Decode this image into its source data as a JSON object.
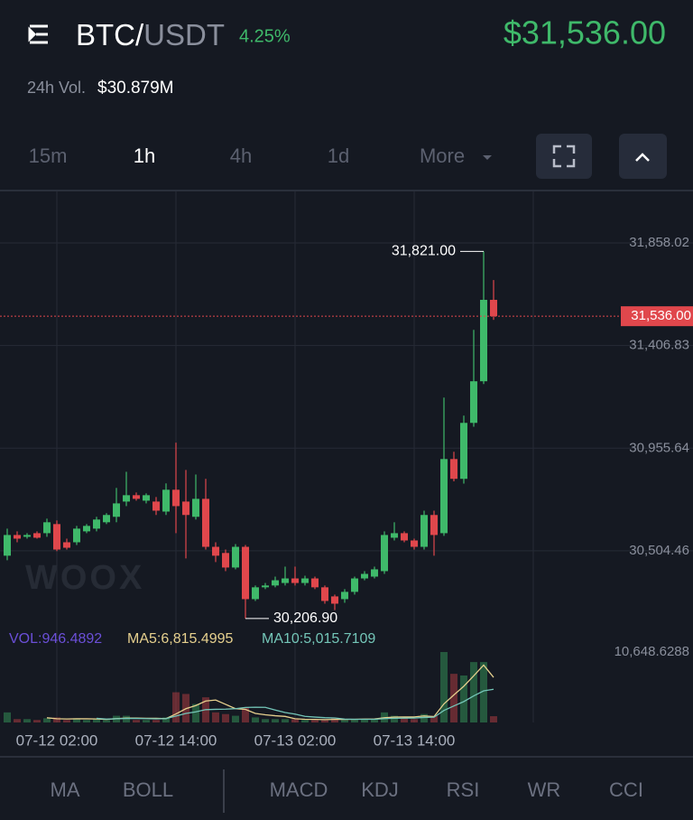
{
  "header": {
    "base": "BTC/",
    "quote": "USDT",
    "change": "4.25%",
    "price": "$31,536.00",
    "volume_label": "24h Vol.",
    "volume": "$30.879M"
  },
  "intervals": [
    "15m",
    "1h",
    "4h",
    "1d",
    "More"
  ],
  "indicators": [
    "MA",
    "BOLL",
    "MACD",
    "KDJ",
    "RSI",
    "WR",
    "CCI"
  ],
  "chart_data": {
    "type": "candlestick",
    "categories": [
      null,
      null,
      null,
      null,
      null,
      "07-12 02:00",
      null,
      null,
      null,
      null,
      null,
      null,
      null,
      null,
      null,
      null,
      null,
      "07-12 14:00",
      null,
      null,
      null,
      null,
      null,
      null,
      null,
      null,
      null,
      null,
      null,
      "07-13 02:00",
      null,
      null,
      null,
      null,
      null,
      null,
      null,
      null,
      null,
      null,
      null,
      "07-13 14:00",
      null,
      null,
      null,
      null,
      null,
      null,
      null,
      null
    ],
    "open": [
      30483,
      30574,
      30566,
      30582,
      30582,
      30622,
      30542,
      30542,
      30590,
      30602,
      30630,
      30654,
      30721,
      30749,
      30725,
      30721,
      30677,
      30773,
      30721,
      30654,
      30733,
      30522,
      30495,
      30431,
      30522,
      30292,
      30344,
      30352,
      30363,
      30383,
      30363,
      30383,
      30344,
      30304,
      30292,
      30324,
      30383,
      30391,
      30415,
      30562,
      30582,
      30550,
      30522,
      30662,
      30582,
      30908,
      30821,
      31067,
      31250,
      31608
    ],
    "high": [
      30602,
      30590,
      30582,
      30590,
      30646,
      30638,
      30558,
      30614,
      30622,
      30654,
      30670,
      30781,
      30852,
      30761,
      30757,
      30741,
      30801,
      30980,
      30860,
      30840,
      30821,
      30542,
      30510,
      30534,
      30530,
      30352,
      30363,
      30391,
      30435,
      30435,
      30395,
      30391,
      30352,
      30312,
      30336,
      30391,
      30415,
      30435,
      30590,
      30630,
      30590,
      30558,
      30681,
      30681,
      31178,
      30940,
      31099,
      31476,
      31821,
      31695
    ],
    "low": [
      30463,
      30542,
      30558,
      30558,
      30566,
      30503,
      30510,
      30530,
      30582,
      30590,
      30622,
      30630,
      30701,
      30725,
      30713,
      30662,
      30662,
      30582,
      30471,
      30642,
      30510,
      30455,
      30415,
      30423,
      30206.9,
      30284,
      30336,
      30344,
      30352,
      30352,
      30352,
      30336,
      30272,
      30244,
      30276,
      30312,
      30375,
      30383,
      30403,
      30550,
      30542,
      30510,
      30510,
      30483,
      30570,
      30810,
      30800,
      31050,
      31238,
      31520
    ],
    "close": [
      30574,
      30558,
      30574,
      30562,
      30630,
      30510,
      30518,
      30602,
      30614,
      30642,
      30662,
      30713,
      30749,
      30733,
      30749,
      30681,
      30773,
      30701,
      30662,
      30733,
      30522,
      30483,
      30431,
      30522,
      30292,
      30344,
      30352,
      30375,
      30383,
      30363,
      30383,
      30344,
      30284,
      30272,
      30324,
      30383,
      30403,
      30423,
      30574,
      30582,
      30550,
      30522,
      30662,
      30574,
      30908,
      30821,
      31067,
      31250,
      31608,
      31536
    ],
    "up_color": "#3fb96a",
    "down_color": "#e0474c",
    "ylim": [
      30146.8,
      32084.6
    ],
    "yticks": [
      {
        "value": 31858.02,
        "label": "31,858.02"
      },
      {
        "value": 31406.83,
        "label": "31,406.83"
      },
      {
        "value": 30955.64,
        "label": "30,955.64"
      },
      {
        "value": 30504.46,
        "label": "30,504.46"
      }
    ],
    "grid": true,
    "price_line": {
      "value": 31536,
      "label": "31,536.00"
    },
    "high_annotation": {
      "value": 31821,
      "label": "31,821.00"
    },
    "low_annotation": {
      "value": 30206.9,
      "label": "30,206.90"
    },
    "watermark": "WOOX",
    "volume": {
      "values": [
        1522,
        507,
        507,
        380,
        634,
        761,
        380,
        634,
        380,
        507,
        380,
        1014,
        1014,
        380,
        380,
        380,
        761,
        4565,
        4311,
        2790,
        3804,
        1522,
        1268,
        1014,
        2282,
        761,
        507,
        507,
        507,
        507,
        380,
        380,
        380,
        634,
        507,
        507,
        507,
        507,
        1522,
        1014,
        634,
        507,
        1268,
        1014,
        10648.6288,
        7354,
        7101,
        9130,
        9130,
        946.4892
      ],
      "ma5": [
        null,
        null,
        null,
        null,
        710,
        558,
        532,
        558,
        558,
        532,
        456,
        583,
        659,
        659,
        634,
        634,
        583,
        1293,
        2079,
        2561,
        3246,
        3398,
        2739,
        2080,
        1978,
        1369,
        1166,
        1014,
        913,
        558,
        482,
        456,
        431,
        456,
        456,
        482,
        507,
        532,
        710,
        811,
        837,
        837,
        989,
        887,
        2814,
        4158,
        5477,
        7050,
        8673,
        6815.4995
      ],
      "ma10": [
        null,
        null,
        null,
        null,
        null,
        null,
        null,
        null,
        null,
        621,
        507,
        558,
        608,
        608,
        583,
        545,
        583,
        976,
        1369,
        1598,
        1940,
        1991,
        2016,
        2080,
        2270,
        2308,
        2282,
        1877,
        1496,
        1268,
        926,
        811,
        723,
        685,
        507,
        482,
        482,
        482,
        583,
        634,
        659,
        672,
        761,
        799,
        1813,
        2498,
        3157,
        4019,
        4780,
        5015.7109
      ],
      "legend": [
        "VOL:946.4892",
        "MA5:6,815.4995",
        "MA10:5,015.7109"
      ],
      "colors": [
        "#6b4fd8",
        "#e6d08e",
        "#74c6b8"
      ],
      "ylim": [
        0,
        10648.6288
      ],
      "yticks": [
        {
          "value": 10648.6288,
          "label": "10,648.6288"
        }
      ]
    }
  }
}
